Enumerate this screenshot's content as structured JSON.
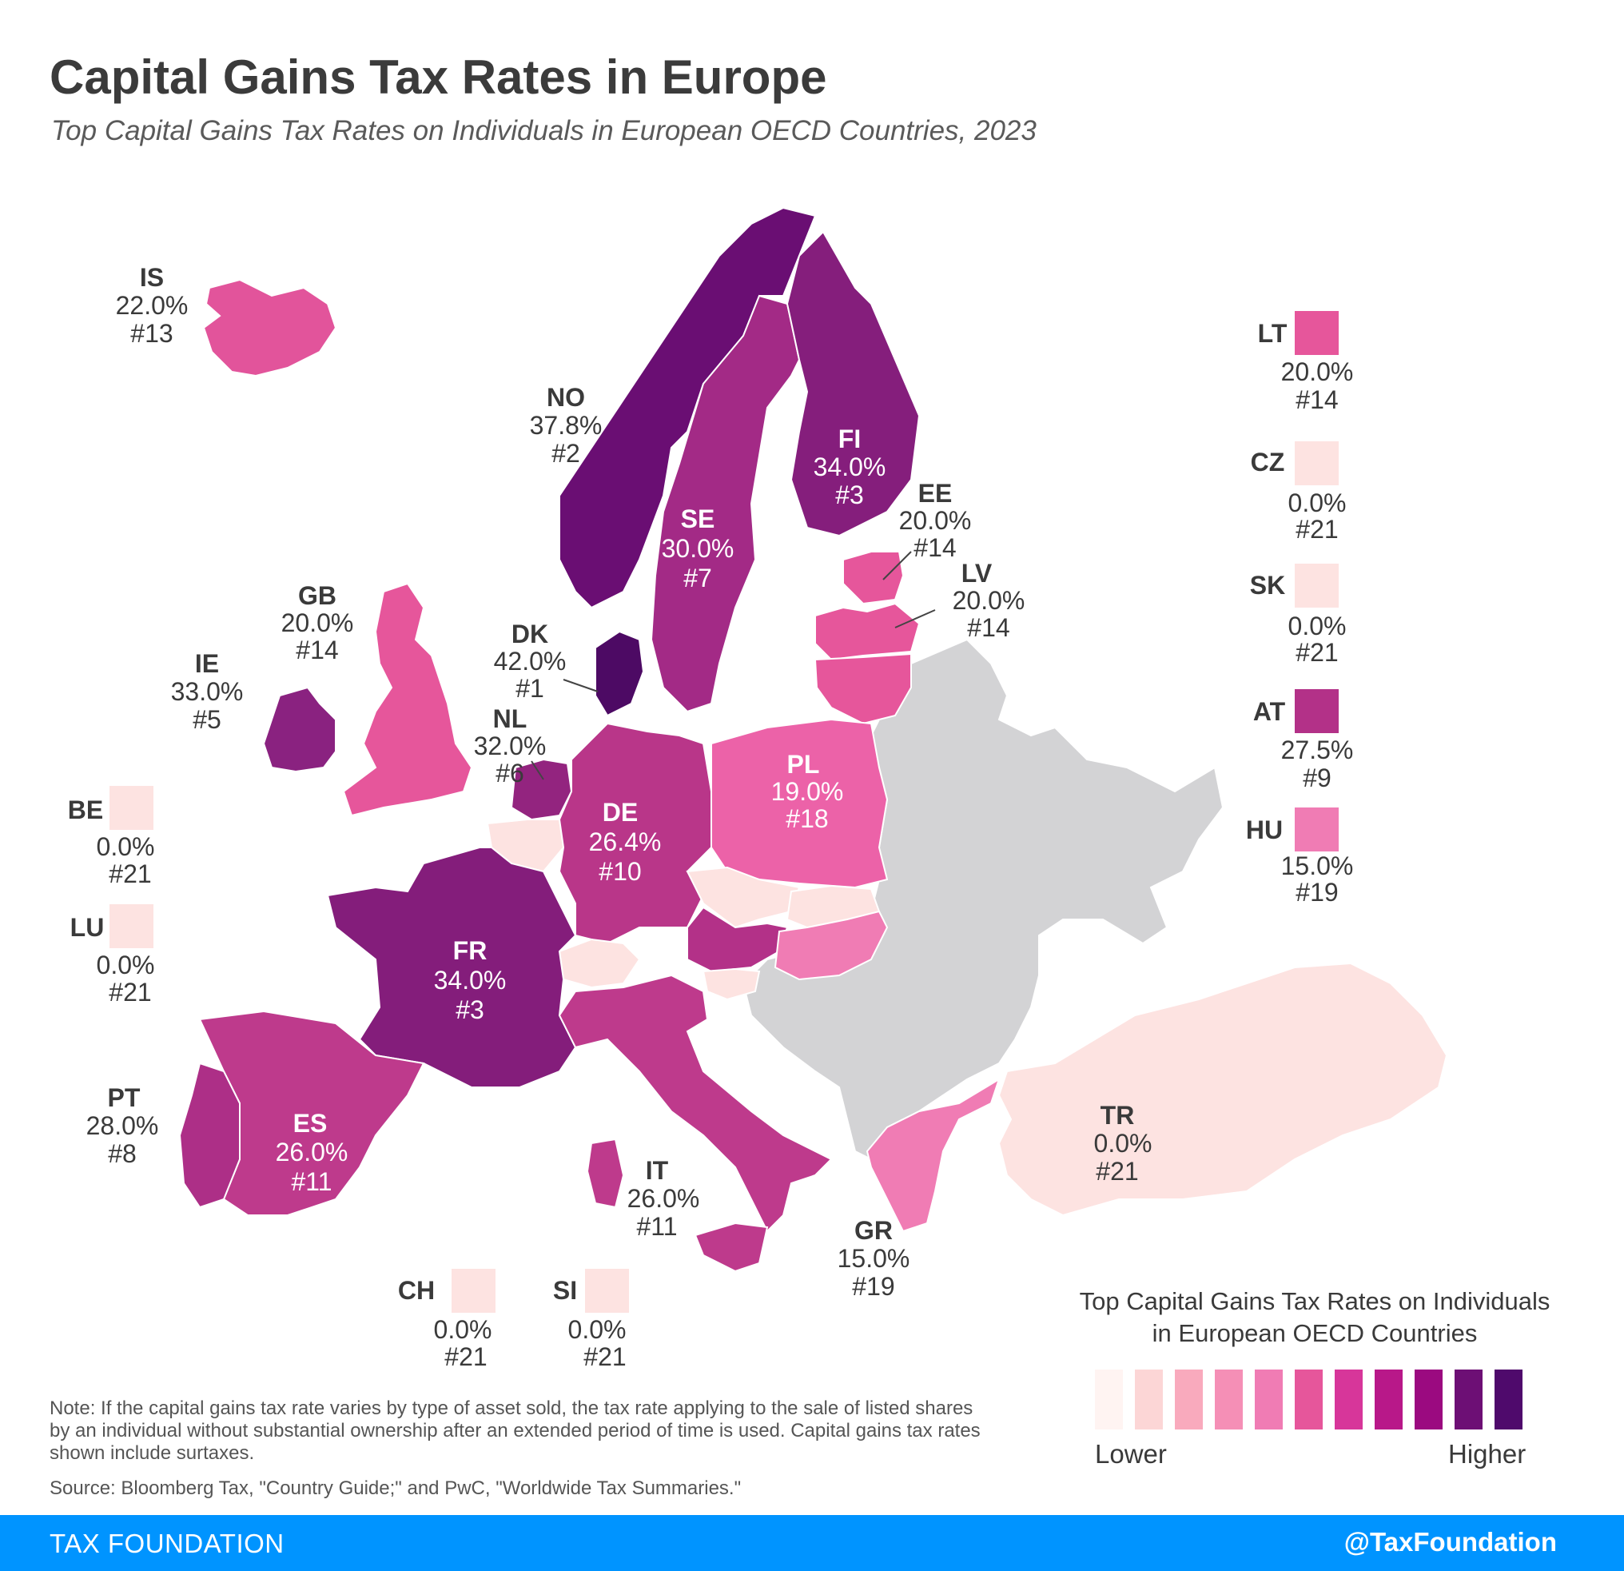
{
  "title": "Capital Gains Tax Rates in Europe",
  "subtitle": "Top Capital Gains Tax Rates on Individuals in European OECD Countries, 2023",
  "countries": {
    "IS": {
      "code": "IS",
      "rate": "22.0%",
      "rank": "#13",
      "color": "#e2549b"
    },
    "NO": {
      "code": "NO",
      "rate": "37.8%",
      "rank": "#2",
      "color": "#6a0e73"
    },
    "FI": {
      "code": "FI",
      "rate": "34.0%",
      "rank": "#3",
      "color": "#851e7c"
    },
    "SE": {
      "code": "SE",
      "rate": "30.0%",
      "rank": "#7",
      "color": "#a32a86"
    },
    "EE": {
      "code": "EE",
      "rate": "20.0%",
      "rank": "#14",
      "color": "#e6569b"
    },
    "LV": {
      "code": "LV",
      "rate": "20.0%",
      "rank": "#14",
      "color": "#e6569b"
    },
    "GB": {
      "code": "GB",
      "rate": "20.0%",
      "rank": "#14",
      "color": "#e6569b"
    },
    "IE": {
      "code": "IE",
      "rate": "33.0%",
      "rank": "#5",
      "color": "#8a2280"
    },
    "DK": {
      "code": "DK",
      "rate": "42.0%",
      "rank": "#1",
      "color": "#4d0a64"
    },
    "NL": {
      "code": "NL",
      "rate": "32.0%",
      "rank": "#6",
      "color": "#93247f"
    },
    "DE": {
      "code": "DE",
      "rate": "26.4%",
      "rank": "#10",
      "color": "#b93689"
    },
    "PL": {
      "code": "PL",
      "rate": "19.0%",
      "rank": "#18",
      "color": "#ec62a8"
    },
    "FR": {
      "code": "FR",
      "rate": "34.0%",
      "rank": "#3",
      "color": "#841d7b"
    },
    "ES": {
      "code": "ES",
      "rate": "26.0%",
      "rank": "#11",
      "color": "#be3a8c"
    },
    "PT": {
      "code": "PT",
      "rate": "28.0%",
      "rank": "#8",
      "color": "#ad2f87"
    },
    "IT": {
      "code": "IT",
      "rate": "26.0%",
      "rank": "#11",
      "color": "#be3a8c"
    },
    "GR": {
      "code": "GR",
      "rate": "15.0%",
      "rank": "#19",
      "color": "#f07cb4"
    },
    "TR": {
      "code": "TR",
      "rate": "0.0%",
      "rank": "#21",
      "color": "#fde3e1"
    },
    "LT": {
      "code": "LT",
      "rate": "20.0%",
      "rank": "#14",
      "color": "#e6569b"
    },
    "CZ": {
      "code": "CZ",
      "rate": "0.0%",
      "rank": "#21",
      "color": "#fde3e1"
    },
    "SK": {
      "code": "SK",
      "rate": "0.0%",
      "rank": "#21",
      "color": "#fde3e1"
    },
    "AT": {
      "code": "AT",
      "rate": "27.5%",
      "rank": "#9",
      "color": "#b33188"
    },
    "HU": {
      "code": "HU",
      "rate": "15.0%",
      "rank": "#19",
      "color": "#f07cb4"
    },
    "BE": {
      "code": "BE",
      "rate": "0.0%",
      "rank": "#21",
      "color": "#fde3e1"
    },
    "LU": {
      "code": "LU",
      "rate": "0.0%",
      "rank": "#21",
      "color": "#fde3e1"
    },
    "CH": {
      "code": "CH",
      "rate": "0.0%",
      "rank": "#21",
      "color": "#fde3e1"
    },
    "SI": {
      "code": "SI",
      "rate": "0.0%",
      "rank": "#21",
      "color": "#fde3e1"
    }
  },
  "non_oecd_color": "#d3d3d5",
  "legend": {
    "title_line1": "Top Capital Gains Tax Rates on Individuals",
    "title_line2": "in European OECD Countries",
    "scale_colors": [
      "#fff4f2",
      "#fcd6d6",
      "#f9aabd",
      "#f58fb6",
      "#f07cb4",
      "#e6569b",
      "#d7369a",
      "#b81889",
      "#9b0a80",
      "#6d0f75",
      "#4f0a6c"
    ],
    "lower": "Lower",
    "higher": "Higher"
  },
  "note": "Note: If the capital gains tax rate varies by type of asset sold, the tax rate applying to the sale of listed shares by an individual without substantial ownership after an extended period of time is used. Capital gains tax rates shown include surtaxes.",
  "source": "Source: Bloomberg Tax, \"Country Guide;\" and PwC, \"Worldwide Tax Summaries.\"",
  "footer": {
    "brand": "TAX FOUNDATION",
    "handle": "@TaxFoundation"
  }
}
